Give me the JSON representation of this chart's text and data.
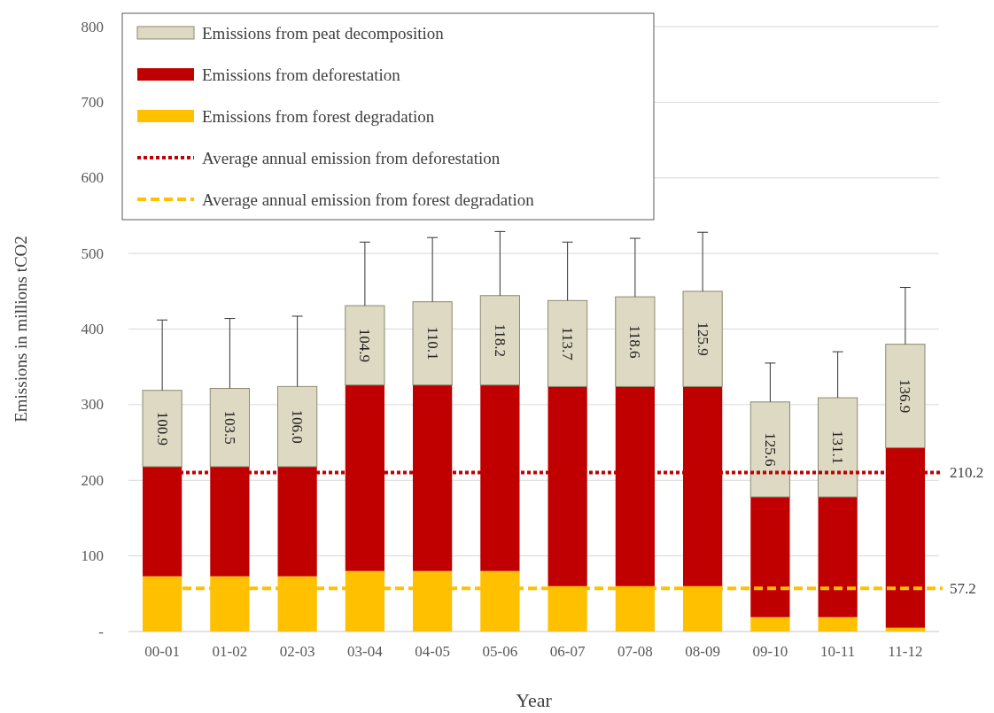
{
  "chart_data": {
    "type": "bar",
    "stacked": true,
    "xlabel": "Year",
    "ylabel": "Emissions in millions tCO2",
    "categories": [
      "00-01",
      "01-02",
      "02-03",
      "03-04",
      "04-05",
      "05-06",
      "06-07",
      "07-08",
      "08-09",
      "09-10",
      "10-11",
      "11-12"
    ],
    "series": [
      {
        "name": "Emissions from forest degradation",
        "color": "#ffc000",
        "values": [
          73,
          73,
          73,
          80,
          80,
          80,
          60,
          60,
          60,
          19,
          19,
          5
        ]
      },
      {
        "name": "Emissions from deforestation",
        "color": "#c00000",
        "values": [
          145,
          145,
          145,
          246,
          246,
          246,
          264,
          264,
          264,
          159,
          159,
          238
        ]
      },
      {
        "name": "Emissions from peat decomposition",
        "color": "#ddd9c3",
        "values": [
          100.9,
          103.5,
          106.0,
          104.9,
          110.1,
          118.2,
          113.7,
          118.6,
          125.9,
          125.6,
          131.1,
          136.9
        ],
        "value_labels": [
          "100.9",
          "103.5",
          "106.0",
          "104.9",
          "110.1",
          "118.2",
          "113.7",
          "118.6",
          "125.9",
          "125.6",
          "131.1",
          "136.9"
        ],
        "errors": [
          [
            318.9,
            412
          ],
          [
            321.5,
            414
          ],
          [
            324,
            417
          ],
          [
            430.9,
            515
          ],
          [
            436.1,
            521
          ],
          [
            444.2,
            529
          ],
          [
            437.7,
            515
          ],
          [
            442.6,
            520
          ],
          [
            449.9,
            528
          ],
          [
            303.6,
            355
          ],
          [
            309.1,
            370
          ],
          [
            379.9,
            455
          ]
        ]
      }
    ],
    "ref_lines": [
      {
        "axis": "y",
        "value": 210.2,
        "label": "Average annual emission from deforestation",
        "color": "#c00000",
        "line_style": "dotted"
      },
      {
        "axis": "y",
        "value": 57.2,
        "label": "Average annual emission from forest degradation",
        "color": "#ffc000",
        "line_style": "dashed"
      }
    ],
    "annotations": [
      {
        "text": "210.2",
        "x": "11-12",
        "y": 210.2
      },
      {
        "text": "57.2",
        "x": "11-12",
        "y": 57.2
      }
    ],
    "ylim": [
      0,
      800
    ],
    "yticks": [
      {
        "value": 0,
        "label": "-"
      },
      100,
      200,
      300,
      400,
      500,
      600,
      700,
      800
    ],
    "grid": "y",
    "legend": "top left"
  }
}
